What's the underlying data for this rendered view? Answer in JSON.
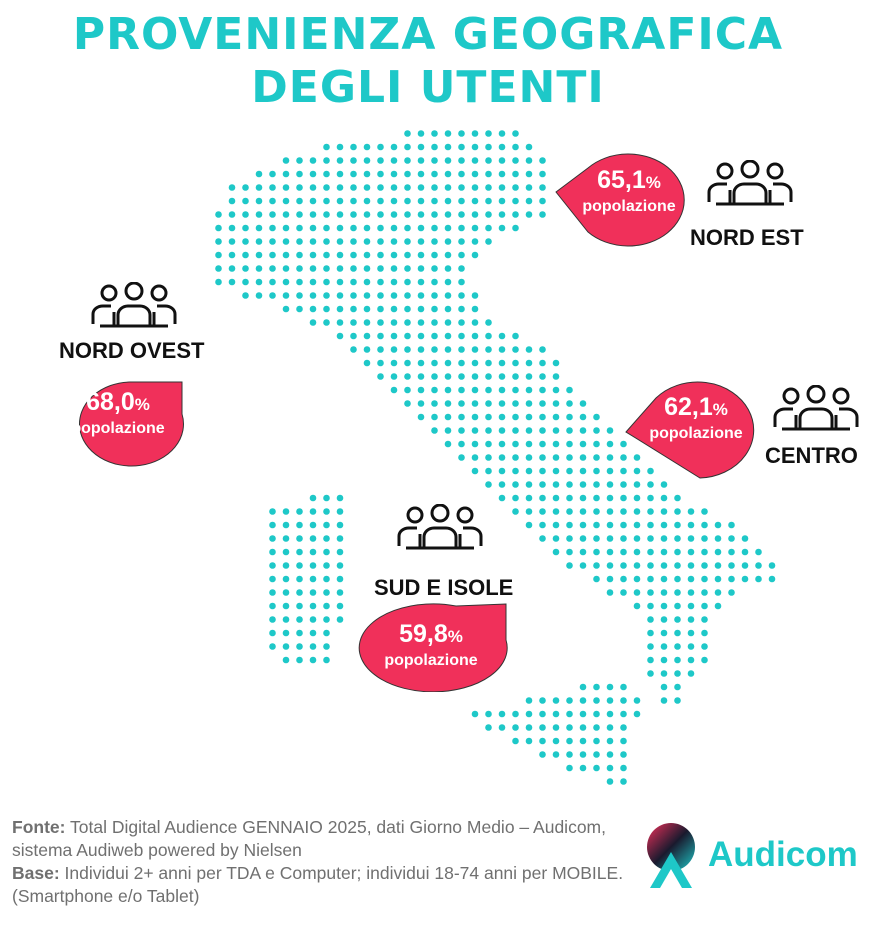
{
  "title": {
    "line1": "PROVENIENZA GEOGRAFICA",
    "line2": "DEGLI UTENTI"
  },
  "colors": {
    "accent": "#1ec8c8",
    "drop": "#f0305a",
    "dark": "#111111"
  },
  "regions": [
    {
      "id": "nord-ovest",
      "name": "NORD OVEST",
      "value": "68,0",
      "pct": "%",
      "label": "popolazione",
      "icon": "people-group-icon"
    },
    {
      "id": "nord-est",
      "name": "NORD EST",
      "value": "65,1",
      "pct": "%",
      "label": "popolazione",
      "icon": "people-group-icon"
    },
    {
      "id": "centro",
      "name": "CENTRO",
      "value": "62,1",
      "pct": "%",
      "label": "popolazione",
      "icon": "people-group-icon"
    },
    {
      "id": "sud-isole",
      "name": "SUD E ISOLE",
      "value": "59,8",
      "pct": "%",
      "label": "popolazione",
      "icon": "people-group-icon"
    }
  ],
  "footer": {
    "fonte_label": "Fonte:",
    "fonte_text": " Total Digital Audience GENNAIO 2025, dati Giorno Medio – Audicom, sistema Audiweb powered by Nielsen",
    "base_label": "Base:",
    "base_text": "  Individui 2+ anni per TDA e Computer; individui 18-74 anni per MOBILE.(Smartphone e/o Tablet)"
  },
  "logo": {
    "text": "Audicom"
  }
}
